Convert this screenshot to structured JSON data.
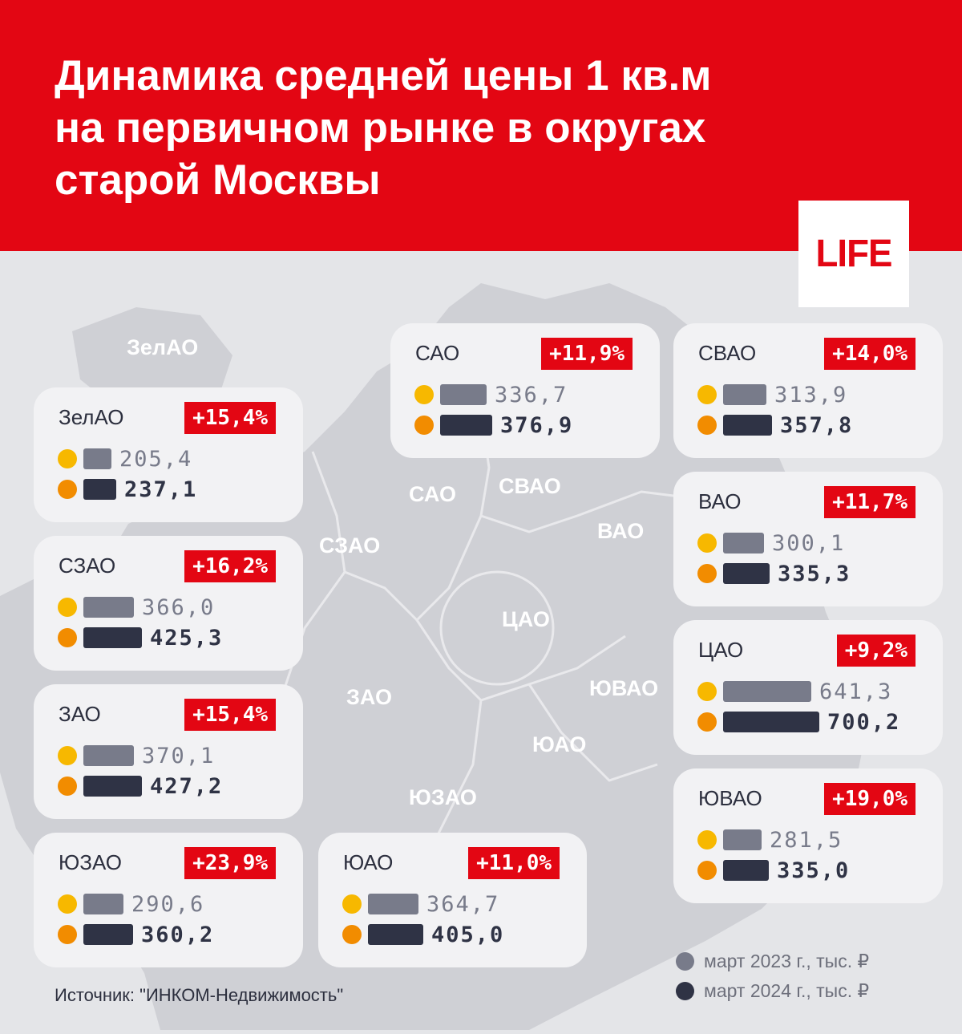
{
  "header": {
    "title": "Динамика средней цены 1 кв.м\nна первичном рынке в округах\nстарой Москвы",
    "logo": "LIFE"
  },
  "colors": {
    "brand_red": "#e30613",
    "bar_2023": "#787b8a",
    "bar_2024": "#2f3345",
    "dot_2023": "#f7b800",
    "dot_2024": "#f28c00"
  },
  "map_labels": [
    "ЗелАО",
    "САО",
    "СВАО",
    "СЗАО",
    "ВАО",
    "ЦАО",
    "ЗАО",
    "ЮВАО",
    "ЮАО",
    "ЮЗАО"
  ],
  "chart_data": {
    "type": "bar",
    "categories": [
      "ЗелАО",
      "СЗАО",
      "ЗАО",
      "ЮЗАО",
      "ЮАО",
      "САО",
      "СВАО",
      "ВАО",
      "ЦАО",
      "ЮВАО"
    ],
    "series": [
      {
        "name": "март 2023 г., тыс. ₽",
        "values": [
          205.4,
          366.0,
          370.1,
          290.6,
          364.7,
          336.7,
          313.9,
          300.1,
          641.3,
          281.5
        ]
      },
      {
        "name": "март 2024 г., тыс. ₽",
        "values": [
          237.1,
          425.3,
          427.2,
          360.2,
          405.0,
          376.9,
          357.8,
          335.3,
          700.2,
          335.0
        ]
      }
    ],
    "cards": [
      {
        "name": "ЗелАО",
        "change": "+15,4%",
        "v2023": "205,4",
        "v2024": "237,1"
      },
      {
        "name": "СЗАО",
        "change": "+16,2%",
        "v2023": "366,0",
        "v2024": "425,3"
      },
      {
        "name": "ЗАО",
        "change": "+15,4%",
        "v2023": "370,1",
        "v2024": "427,2"
      },
      {
        "name": "ЮЗАО",
        "change": "+23,9%",
        "v2023": "290,6",
        "v2024": "360,2"
      },
      {
        "name": "ЮАО",
        "change": "+11,0%",
        "v2023": "364,7",
        "v2024": "405,0"
      },
      {
        "name": "САО",
        "change": "+11,9%",
        "v2023": "336,7",
        "v2024": "376,9"
      },
      {
        "name": "СВАО",
        "change": "+14,0%",
        "v2023": "313,9",
        "v2024": "357,8"
      },
      {
        "name": "ВАО",
        "change": "+11,7%",
        "v2023": "300,1",
        "v2024": "335,3"
      },
      {
        "name": "ЦАО",
        "change": "+9,2%",
        "v2023": "641,3",
        "v2024": "700,2"
      },
      {
        "name": "ЮВАО",
        "change": "+19,0%",
        "v2023": "281,5",
        "v2024": "335,0"
      }
    ]
  },
  "legend": {
    "item_2023": "март 2023 г., тыс. ₽",
    "item_2024": "март 2024 г., тыс. ₽"
  },
  "source": "Источник: \"ИНКОМ-Недвижимость\""
}
